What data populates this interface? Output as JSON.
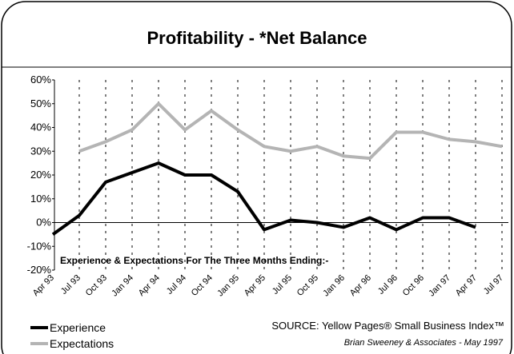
{
  "chart_data": {
    "type": "line",
    "title": "Profitability - *Net Balance",
    "categories": [
      "Apr 93",
      "Jul 93",
      "Oct 93",
      "Jan 94",
      "Apr 94",
      "Jul 94",
      "Oct 94",
      "Jan 95",
      "Apr 95",
      "Jul 95",
      "Oct 95",
      "Jan 96",
      "Apr 96",
      "Jul 96",
      "Oct 96",
      "Jan 97",
      "Apr 97",
      "Jul 97"
    ],
    "series": [
      {
        "name": "Experience",
        "color": "#000000",
        "values": [
          -5,
          3,
          17,
          21,
          25,
          20,
          20,
          13,
          -3,
          1,
          0,
          -2,
          2,
          -3,
          2,
          2,
          -2,
          null
        ]
      },
      {
        "name": "Expectations",
        "color": "#b4b4b4",
        "values": [
          null,
          30,
          34,
          39,
          50,
          39,
          47,
          39,
          32,
          30,
          32,
          28,
          27,
          38,
          38,
          35,
          34,
          32
        ]
      }
    ],
    "ylim": [
      -20,
      60
    ],
    "yticks": [
      {
        "value": -20,
        "label": "-20%"
      },
      {
        "value": -10,
        "label": "-10%"
      },
      {
        "value": 0,
        "label": "0%"
      },
      {
        "value": 10,
        "label": "10%"
      },
      {
        "value": 20,
        "label": "20%"
      },
      {
        "value": 30,
        "label": "30%"
      },
      {
        "value": 40,
        "label": "40%"
      },
      {
        "value": 50,
        "label": "50%"
      },
      {
        "value": 60,
        "label": "60%"
      }
    ],
    "annotation": "Experience & Expectations For The Three Months Ending:-",
    "source": "SOURCE: Yellow Pages® Small Business Index™",
    "credit": "Brian Sweeney & Associates - May 1997",
    "grid": true
  }
}
